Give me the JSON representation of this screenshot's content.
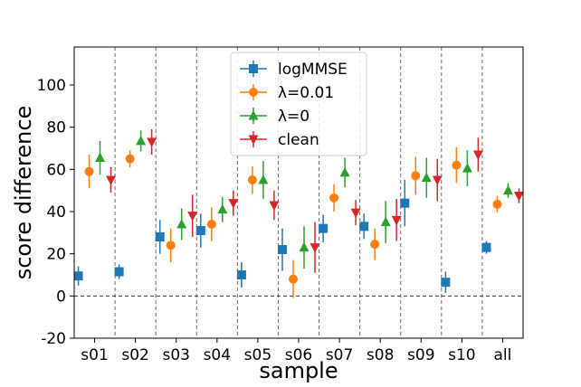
{
  "chart_data": {
    "type": "scatter",
    "title": "",
    "xlabel": "sample",
    "ylabel": "score difference",
    "categories": [
      "s01",
      "s02",
      "s03",
      "s04",
      "s05",
      "s06",
      "s07",
      "s08",
      "s09",
      "s10",
      "all"
    ],
    "ylim": [
      -20,
      118
    ],
    "yticks": [
      -20,
      0,
      20,
      40,
      60,
      80,
      100
    ],
    "reference_line": 0,
    "category_separators": "dashed",
    "legend_position": "top-center",
    "series": [
      {
        "name": "logMMSE",
        "marker": "square",
        "color": "#1f77b4",
        "values": [
          9.5,
          11.5,
          28,
          31,
          10,
          22,
          32,
          33,
          44,
          6.5,
          23
        ],
        "err_low": [
          4.5,
          3.5,
          8,
          8,
          6,
          10,
          6.5,
          6,
          11,
          5,
          3
        ],
        "err_high": [
          4.5,
          3.5,
          8,
          8,
          6,
          10,
          6.5,
          6,
          11,
          5,
          3
        ]
      },
      {
        "name": "λ=0.01",
        "marker": "circle",
        "color": "#ff7f0e",
        "values": [
          59,
          65,
          24,
          34,
          55,
          8,
          46.5,
          24.5,
          57,
          62,
          43.5
        ],
        "err_low": [
          8,
          4,
          8,
          8,
          6.5,
          9,
          6.5,
          7.5,
          9,
          8.5,
          4
        ],
        "err_high": [
          8,
          4,
          8,
          8,
          6.5,
          9,
          6.5,
          7.5,
          9,
          8.5,
          4
        ]
      },
      {
        "name": "λ=0",
        "marker": "triangle-up",
        "color": "#2ca02c",
        "values": [
          65.5,
          73.5,
          34,
          41,
          55,
          23,
          58.5,
          35,
          56,
          60.5,
          50
        ],
        "err_low": [
          8,
          5,
          7.5,
          6,
          9,
          10,
          7,
          10,
          9.5,
          8.5,
          3.5
        ],
        "err_high": [
          8,
          5,
          7.5,
          6,
          9,
          10,
          7,
          10,
          9.5,
          8.5,
          3.5
        ]
      },
      {
        "name": "clean",
        "marker": "triangle-down",
        "color": "#d62728",
        "values": [
          55,
          73,
          38,
          44,
          43,
          23,
          39.5,
          36,
          55,
          67,
          47.5
        ],
        "err_low": [
          6,
          6,
          10,
          6,
          7,
          12,
          6,
          10,
          10,
          8,
          3.5
        ],
        "err_high": [
          6,
          6,
          10,
          6,
          7,
          12,
          6,
          10,
          10,
          8,
          3.5
        ]
      }
    ]
  }
}
